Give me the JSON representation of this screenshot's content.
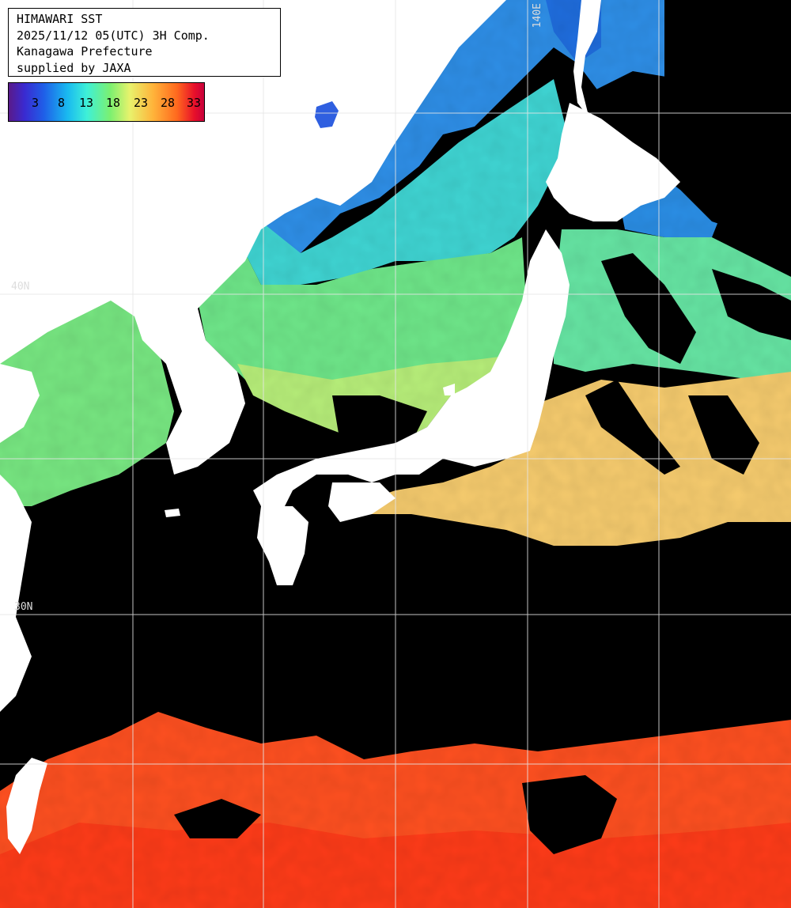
{
  "info": {
    "title": "HIMAWARI SST",
    "datetime": "2025/11/12 05(UTC) 3H Comp.",
    "region": "Kanagawa Prefecture",
    "credit": "supplied by JAXA"
  },
  "legend": {
    "ticks": [
      "3",
      "8",
      "13",
      "18",
      "23",
      "28",
      "33"
    ]
  },
  "grid_labels": {
    "lon_140": "140E",
    "lat_40": "40N",
    "lat_30": "30N"
  },
  "colors": {
    "land": "#ffffff",
    "no_data": "#000000",
    "grid": "#e6e6e6"
  }
}
